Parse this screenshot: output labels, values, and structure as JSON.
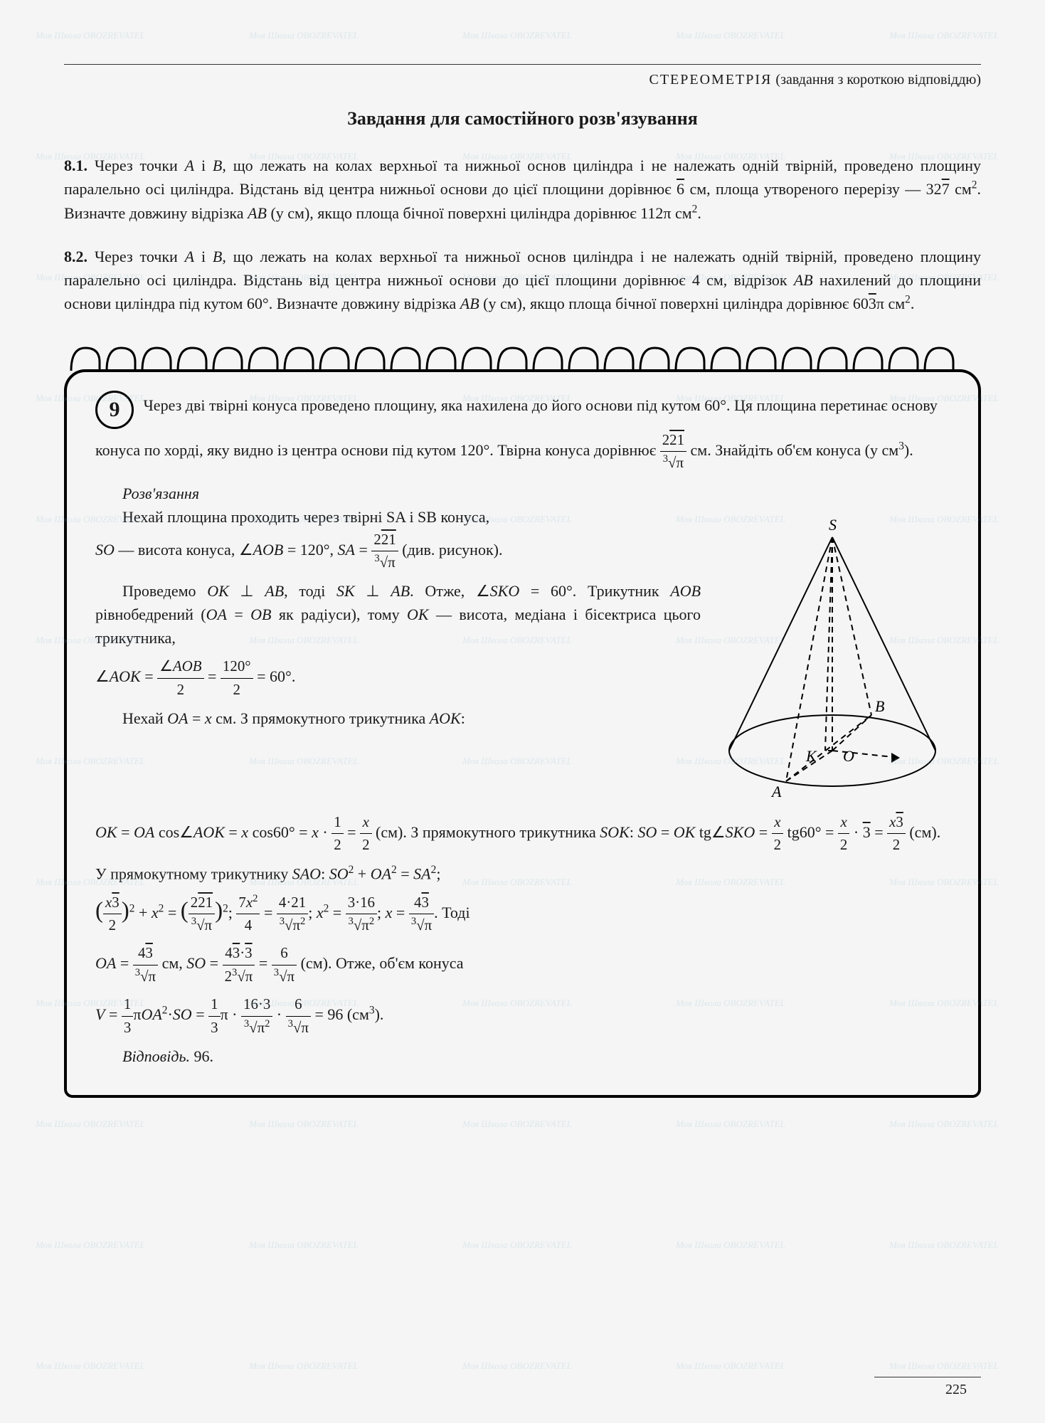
{
  "header": {
    "category_light": "СТЕРЕОМЕТРІЯ",
    "category_rest": " (завдання з короткою відповіддю)"
  },
  "title": "Завдання для самостійного розв'язування",
  "problems": {
    "p81": {
      "num": "8.1.",
      "body": "Через точки A і B, що лежать на колах верхньої та нижньої основ циліндра і не належать одній твірній, проведено площину паралельно осі циліндра. Відстань від центра нижньої основи до цієї площини дорівнює √6 см, площа утвореного перерізу — 32√7 см². Визначте довжину відрізка AB (у см), якщо площа бічної поверхні циліндра дорівнює 112π см²."
    },
    "p82": {
      "num": "8.2.",
      "body": "Через точки A і B, що лежать на колах верхньої та нижньої основ циліндра і не належать одній твірній, проведено площину паралельно осі циліндра. Відстань від центра нижньої основи до цієї площини дорівнює 4 см, відрізок AB нахилений до площини основи циліндра під кутом 60°. Визначте довжину відрізка AB (у см), якщо площа бічної поверхні циліндра дорівнює 60√3π см²."
    }
  },
  "problem9": {
    "num": "9",
    "intro": "Через дві твірні конуса проведено площину, яка нахилена до його основи під кутом 60°. Ця площина перетинає основу конуса по хорді, яку видно із центра основи під кутом 120°. Твірна конуса дорівнює ",
    "intro_tail": " см. Знайдіть об'єм конуса (у см³).",
    "solution_label": "Розв'язання",
    "line1a": "Нехай площина проходить через твірні SA і SB конуса,",
    "line1b": "SO — висота конуса, ∠AOB = 120°, SA = ",
    "line1c": " (див. рисунок).",
    "line2": "Проведемо OK ⊥ AB, тоді SK ⊥ AB. Отже, ∠SKO = 60°. Трикутник AOB рівнобедрений (OA = OB як радіуси), тому OK — висота, медіана і бісектриса цього трикутника,",
    "line3_lead": "∠AOK = ",
    "line3_mid": " = ",
    "line3_tail": " = 60°.",
    "line4": "Нехай OA = x см. З прямокутного трикутника AOK:",
    "line5a": "OK = OA cos∠AOK = x cos60° = x · ",
    "line5b": " (см). З прямокутного трикутника SOK: SO = OK tg∠SKO = ",
    "line5c": " tg60° = ",
    "line5d": " · √3 = ",
    "line5e": " (см).",
    "line6": "У прямокутному трикутнику SAO: SO² + OA² = SA²;",
    "line7_tail": ". Тоді",
    "line8_mid": " см, SO = ",
    "line8_tail": " (см). Отже, об'єм конуса",
    "line9a": "V = ",
    "line9b": "πOA² · SO = ",
    "line9c": "π · ",
    "line9d": " = 96 (см³).",
    "answer_label": "Відповідь. ",
    "answer_value": "96."
  },
  "cone_labels": {
    "S": "S",
    "A": "A",
    "B": "B",
    "O": "O",
    "K": "K"
  },
  "page_number": "225",
  "watermark_text": "Моя Школа    OBOZREVATEL",
  "colors": {
    "text": "#1a1a1a",
    "watermark": "rgba(130,180,200,0.22)",
    "background": "#f5f5f5",
    "border": "#000000"
  }
}
